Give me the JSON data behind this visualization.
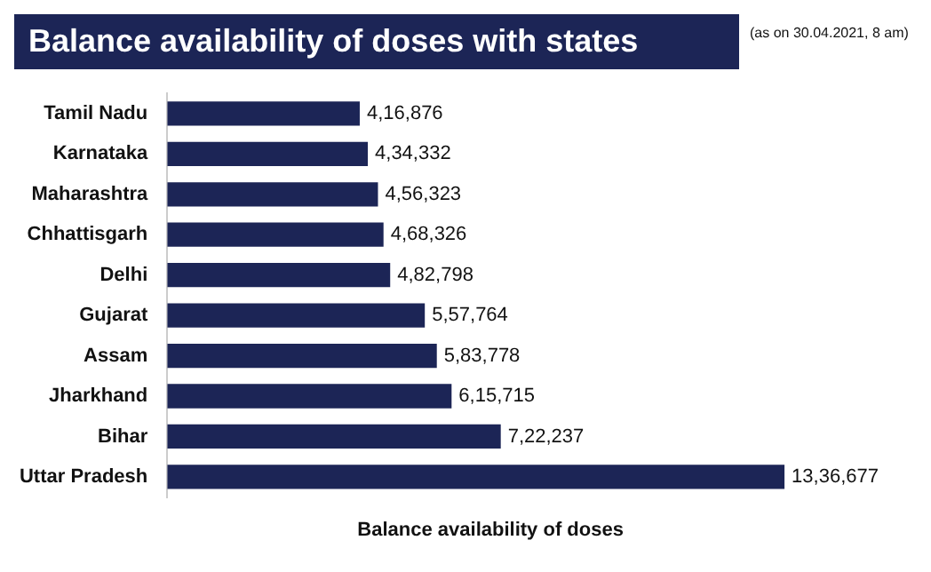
{
  "chart_data": {
    "type": "bar",
    "orientation": "horizontal",
    "title": "Balance availability of doses with states",
    "subtitle": "(as on 30.04.2021, 8 am)",
    "xlabel": "Balance availability of doses",
    "categories": [
      "Tamil Nadu",
      "Karnataka",
      "Maharashtra",
      "Chhattisgarh",
      "Delhi",
      "Gujarat",
      "Assam",
      "Jharkhand",
      "Bihar",
      "Uttar Pradesh"
    ],
    "values": [
      416876,
      434332,
      456323,
      468326,
      482798,
      557764,
      583778,
      615715,
      722237,
      1336677
    ],
    "value_labels": [
      "4,16,876",
      "4,34,332",
      "4,56,323",
      "4,68,326",
      "4,82,798",
      "5,57,764",
      "5,83,778",
      "6,15,715",
      "7,22,237",
      "13,36,677"
    ],
    "color": "#1c2556",
    "grid": false,
    "legend": false
  }
}
